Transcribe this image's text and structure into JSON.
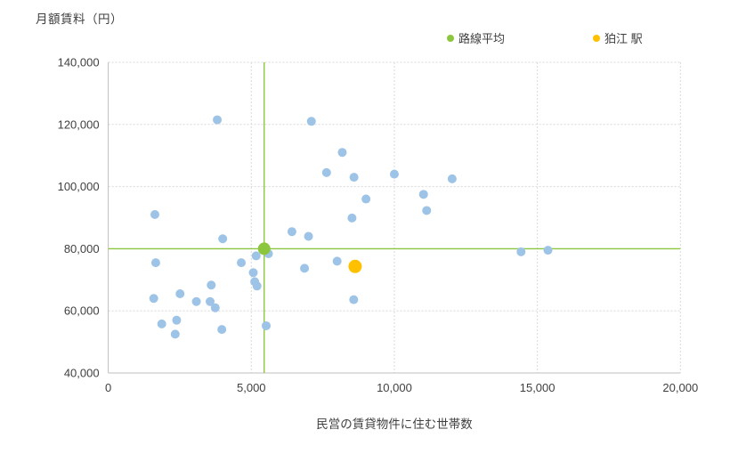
{
  "chart": {
    "y_title": "月額賃料（円）",
    "x_title": "民営の賃貸物件に住む世帯数",
    "legend": [
      {
        "label": "路線平均",
        "color": "#8CC63E"
      },
      {
        "label": "狛江 駅",
        "color": "#FFC000"
      }
    ],
    "colors": {
      "station_blue": "#9DC3E6",
      "route_average_green": "#8CC63E",
      "komae_orange": "#FFC000",
      "gridline": "#D9D9D9",
      "axis_line": "#BFBFBF",
      "text": "#404040"
    }
  },
  "chart_data": {
    "type": "scatter",
    "title": "",
    "xlabel": "民営の賃貸物件に住む世帯数",
    "ylabel": "月額賃料（円）",
    "xlim": [
      0,
      20000
    ],
    "ylim": [
      40000,
      140000
    ],
    "x_ticks": [
      0,
      5000,
      10000,
      15000,
      20000
    ],
    "y_ticks": [
      40000,
      60000,
      80000,
      100000,
      120000,
      140000
    ],
    "grid": true,
    "legend_position": "top",
    "series": [
      {
        "id": "line-stations",
        "legend_label": "",
        "color": "#9DC3E6",
        "marker_radius": 5,
        "points": [
          [
            1590,
            64000
          ],
          [
            1630,
            91000
          ],
          [
            1660,
            75500
          ],
          [
            1870,
            55800
          ],
          [
            2340,
            52500
          ],
          [
            2390,
            57000
          ],
          [
            2510,
            65500
          ],
          [
            3080,
            63000
          ],
          [
            3560,
            63000
          ],
          [
            3600,
            68300
          ],
          [
            3740,
            61000
          ],
          [
            3810,
            121500
          ],
          [
            3970,
            54000
          ],
          [
            4000,
            83200
          ],
          [
            4650,
            75500
          ],
          [
            5070,
            72300
          ],
          [
            5120,
            69400
          ],
          [
            5170,
            77700
          ],
          [
            5200,
            68000
          ],
          [
            5520,
            55200
          ],
          [
            5600,
            78400
          ],
          [
            6420,
            85500
          ],
          [
            6860,
            73700
          ],
          [
            7000,
            84000
          ],
          [
            7100,
            121000
          ],
          [
            7630,
            104500
          ],
          [
            8000,
            76000
          ],
          [
            8180,
            111000
          ],
          [
            8520,
            89900
          ],
          [
            8580,
            63600
          ],
          [
            8590,
            103000
          ],
          [
            9010,
            96000
          ],
          [
            10000,
            104000
          ],
          [
            11020,
            97500
          ],
          [
            11130,
            92300
          ],
          [
            12020,
            102500
          ],
          [
            14430,
            79000
          ],
          [
            15370,
            79500
          ]
        ]
      },
      {
        "id": "route-average",
        "legend_label": "路線平均",
        "color": "#8CC63E",
        "marker_radius": 7,
        "crosshair": true,
        "points": [
          [
            5450,
            80000
          ]
        ]
      },
      {
        "id": "komae-station",
        "legend_label": "狛江 駅",
        "color": "#FFC000",
        "marker_radius": 7.5,
        "points": [
          [
            8630,
            74300
          ]
        ]
      }
    ]
  }
}
